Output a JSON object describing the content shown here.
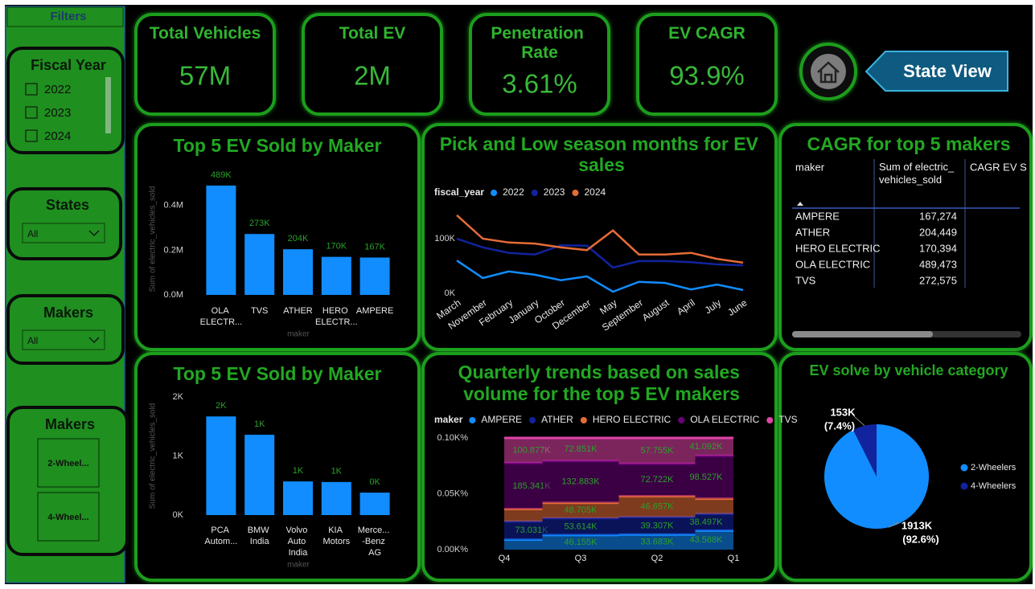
{
  "filters": {
    "title": "Filters",
    "fiscal_year": {
      "title": "Fiscal Year",
      "options": [
        "2022",
        "2023",
        "2024"
      ]
    },
    "states": {
      "title": "States",
      "selected": "All"
    },
    "makers": {
      "title": "Makers",
      "selected": "All"
    },
    "maker_buttons": {
      "title": "Makers",
      "buttons": [
        "2-Wheel...",
        "4-Wheel..."
      ]
    }
  },
  "kpis": [
    {
      "title": "Total Vehicles",
      "value": "57M"
    },
    {
      "title": "Total EV",
      "value": "2M"
    },
    {
      "title": "Penetration Rate",
      "value": "3.61%"
    },
    {
      "title": "EV CAGR",
      "value": "93.9%"
    }
  ],
  "nav": {
    "button": "State View"
  },
  "table": {
    "title": "CAGR for top 5 makers",
    "columns": [
      "maker",
      "Sum of electric_vehicles_sold",
      "CAGR EV S"
    ],
    "rows": [
      [
        "AMPERE",
        "167,274"
      ],
      [
        "ATHER",
        "204,449"
      ],
      [
        "HERO ELECTRIC",
        "170,394"
      ],
      [
        "OLA ELECTRIC",
        "489,473"
      ],
      [
        "TVS",
        "272,575"
      ]
    ]
  },
  "chart_data": [
    {
      "type": "bar",
      "title": "Top 5 EV Sold by Maker",
      "y_label": "Sum of electric_vehicles_sold",
      "x_label": "maker",
      "categories": [
        "OLA ELECTR...",
        "TVS",
        "ATHER",
        "HERO ELECTR...",
        "AMPERE"
      ],
      "values": [
        489473,
        272575,
        204449,
        170394,
        167274
      ],
      "value_labels": [
        "489K",
        "273K",
        "204K",
        "170K",
        "167K"
      ],
      "color": "#118dff",
      "ylim": [
        0,
        500000
      ],
      "yticks": [
        {
          "value": 0,
          "label": "0.0M"
        },
        {
          "value": 200000,
          "label": "0.2M"
        },
        {
          "value": 400000,
          "label": "0.4M"
        }
      ]
    },
    {
      "type": "line",
      "title": "Pick and Low season months for EV sales",
      "legend_title": "fiscal_year",
      "categories": [
        "March",
        "November",
        "February",
        "January",
        "October",
        "December",
        "May",
        "September",
        "August",
        "April",
        "July",
        "June"
      ],
      "series": [
        {
          "name": "2022",
          "color": "#118dff",
          "values": [
            60000,
            28000,
            40000,
            34000,
            24000,
            31000,
            3000,
            21000,
            19000,
            7000,
            16000,
            6000
          ]
        },
        {
          "name": "2023",
          "color": "#12239e",
          "values": [
            100000,
            84000,
            74000,
            71000,
            88000,
            87000,
            47000,
            59000,
            59000,
            57000,
            53000,
            51000
          ]
        },
        {
          "name": "2024",
          "color": "#e66c37",
          "values": [
            143000,
            100000,
            93000,
            91000,
            84000,
            79000,
            115000,
            71000,
            71000,
            74000,
            63000,
            56000
          ]
        }
      ],
      "ylim": [
        0,
        160000
      ],
      "yticks": [
        {
          "value": 0,
          "label": "0K"
        },
        {
          "value": 100000,
          "label": "100K"
        }
      ]
    },
    {
      "type": "bar",
      "title": "Top 5 EV Sold by Maker",
      "y_label": "Sum of electric_vehicles_sold",
      "x_label": "maker",
      "categories": [
        "PCA Autom...",
        "BMW India",
        "Volvo Auto India",
        "KIA Motors",
        "Merce... -Benz AG"
      ],
      "values": [
        1670,
        1360,
        570,
        560,
        380
      ],
      "value_labels": [
        "2K",
        "1K",
        "1K",
        "1K",
        "0K"
      ],
      "color": "#118dff",
      "ylim": [
        0,
        2000
      ],
      "yticks": [
        {
          "value": 0,
          "label": "0K"
        },
        {
          "value": 1000,
          "label": "1K"
        },
        {
          "value": 2000,
          "label": "2K"
        }
      ]
    },
    {
      "type": "area",
      "title": "Quarterly trends based on sales volume for the top 5 EV makers",
      "legend_title": "maker",
      "categories": [
        "Q4",
        "Q3",
        "Q2",
        "Q1"
      ],
      "series": [
        {
          "name": "AMPERE",
          "color": "#118dff",
          "values": [
            40000,
            46155,
            33683,
            43588
          ],
          "value_labels": [
            null,
            "46.155K",
            "33.683K",
            "43.588K"
          ]
        },
        {
          "name": "ATHER",
          "color": "#12239e",
          "values": [
            73031,
            53614,
            39307,
            38497
          ],
          "value_labels": [
            "73.031K",
            "53.614K",
            "39.307K",
            "38.497K"
          ]
        },
        {
          "name": "HERO ELECTRIC",
          "color": "#e66c37",
          "values": [
            50000,
            48705,
            46657,
            35000
          ],
          "value_labels": [
            null,
            "48.705K",
            "46.657K",
            null
          ]
        },
        {
          "name": "OLA ELECTRIC",
          "color": "#6b007b",
          "values": [
            185341,
            132883,
            72722,
            98527
          ],
          "value_labels": [
            "185.341K",
            "132.883K",
            "72.722K",
            "98.527K"
          ]
        },
        {
          "name": "TVS",
          "color": "#e044a7",
          "values": [
            100877,
            72851,
            57755,
            41092
          ],
          "value_labels": [
            "100.877K",
            "72.851K",
            "57.755K",
            "41.092K"
          ]
        }
      ],
      "ylim": [
        0,
        0.1
      ],
      "yticks": [
        {
          "value": 0,
          "label": "0.00K%"
        },
        {
          "value": 0.05,
          "label": "0.05K%"
        },
        {
          "value": 0.1,
          "label": "0.10K%"
        }
      ]
    },
    {
      "type": "pie",
      "title": "EV solve by vehicle category",
      "categories": [
        "2-Wheelers",
        "4-Wheelers"
      ],
      "values": [
        1913000,
        153000
      ],
      "value_labels": [
        "1913K",
        "153K"
      ],
      "percent_labels": [
        "(92.6%)",
        "(7.4%)"
      ],
      "colors": [
        "#118dff",
        "#12239e"
      ]
    }
  ]
}
